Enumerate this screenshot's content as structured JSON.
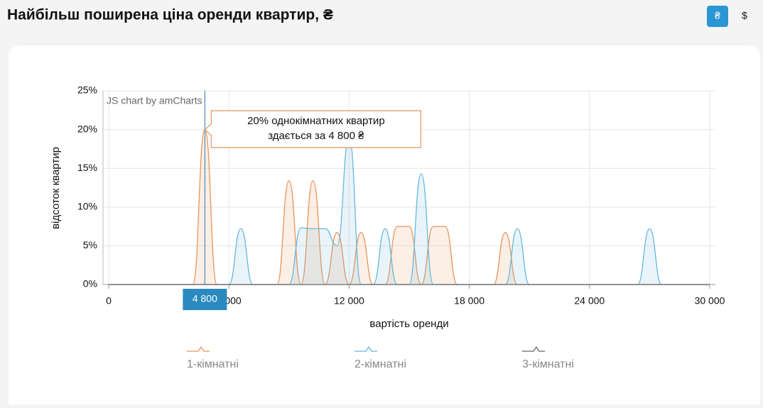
{
  "page": {
    "title": "Найбільш поширена ціна оренди квартир, ₴",
    "currency_options": [
      "₴",
      "$"
    ]
  },
  "chart_data": {
    "type": "area",
    "watermark": "JS chart by amCharts",
    "x_label": "вартість оренди",
    "y_label": "відсоток квартир",
    "x": [
      0,
      600,
      1200,
      1800,
      2400,
      3000,
      3600,
      4200,
      4800,
      5400,
      6000,
      6600,
      7200,
      7800,
      8400,
      9000,
      9600,
      10200,
      10800,
      11400,
      12000,
      12600,
      13200,
      13800,
      14400,
      15000,
      15600,
      16200,
      16800,
      17400,
      18000,
      18600,
      19200,
      19800,
      20400,
      21000,
      21600,
      22200,
      22800,
      23400,
      24000,
      24600,
      25200,
      25800,
      26400,
      27000,
      27600,
      28200,
      28800,
      29400,
      30000
    ],
    "series": [
      {
        "name": "1-кімнатні",
        "color": "#e8955a",
        "values": [
          0,
          0,
          0,
          0,
          0,
          0,
          0,
          0,
          20,
          0,
          0,
          0,
          0,
          0,
          0,
          13.4,
          0,
          13.4,
          0,
          6.7,
          0,
          6.7,
          0,
          0,
          7.5,
          7.5,
          0,
          7.5,
          7.5,
          0,
          0,
          0,
          0,
          6.7,
          0,
          0,
          0,
          0,
          0,
          0,
          0,
          0,
          0,
          0,
          0,
          0,
          0,
          0,
          0,
          0,
          0
        ]
      },
      {
        "name": "2-кімнатні",
        "color": "#67b7dc",
        "values": [
          0,
          0,
          0,
          0,
          0,
          0,
          0,
          0,
          0,
          0,
          0,
          7.2,
          0,
          0,
          0,
          0,
          7.3,
          7.2,
          7.2,
          5,
          19,
          0,
          0,
          7.2,
          0,
          0,
          14.3,
          0,
          0,
          0,
          0,
          0,
          0,
          0,
          7.2,
          0,
          0,
          0,
          0,
          0,
          0,
          0,
          0,
          0,
          0,
          7.2,
          0,
          0,
          0,
          0,
          0
        ]
      },
      {
        "name": "3-кімнатні",
        "color": "#666666",
        "values": [
          0,
          0,
          0,
          0,
          0,
          0,
          0,
          0,
          0,
          0,
          0,
          0,
          0,
          0,
          0,
          0,
          0,
          0,
          0,
          0,
          0,
          0,
          0,
          0,
          0,
          0,
          0,
          0,
          0,
          0,
          0,
          0,
          0,
          0,
          0,
          0,
          0,
          0,
          0,
          0,
          0,
          0,
          0,
          0,
          0,
          0,
          0,
          0,
          0,
          0,
          0
        ]
      }
    ],
    "xlim": [
      0,
      30000
    ],
    "xticks": [
      {
        "value": 0,
        "label": "0"
      },
      {
        "value": 6000,
        "label": "6 000"
      },
      {
        "value": 12000,
        "label": "12 000"
      },
      {
        "value": 18000,
        "label": "18 000"
      },
      {
        "value": 24000,
        "label": "24 000"
      },
      {
        "value": 30000,
        "label": "30 000"
      }
    ],
    "ylim": [
      0,
      25
    ],
    "yticks": [
      {
        "value": 0,
        "label": "0%"
      },
      {
        "value": 5,
        "label": "5%"
      },
      {
        "value": 10,
        "label": "10%"
      },
      {
        "value": 15,
        "label": "15%"
      },
      {
        "value": 20,
        "label": "20%"
      },
      {
        "value": 25,
        "label": "25%"
      }
    ],
    "grid": true,
    "cursor": {
      "x": 4800,
      "x_label": "4 800",
      "y": 20,
      "lines": [
        "20% однокімнатних квартир",
        "здається за 4 800 ₴"
      ]
    }
  }
}
